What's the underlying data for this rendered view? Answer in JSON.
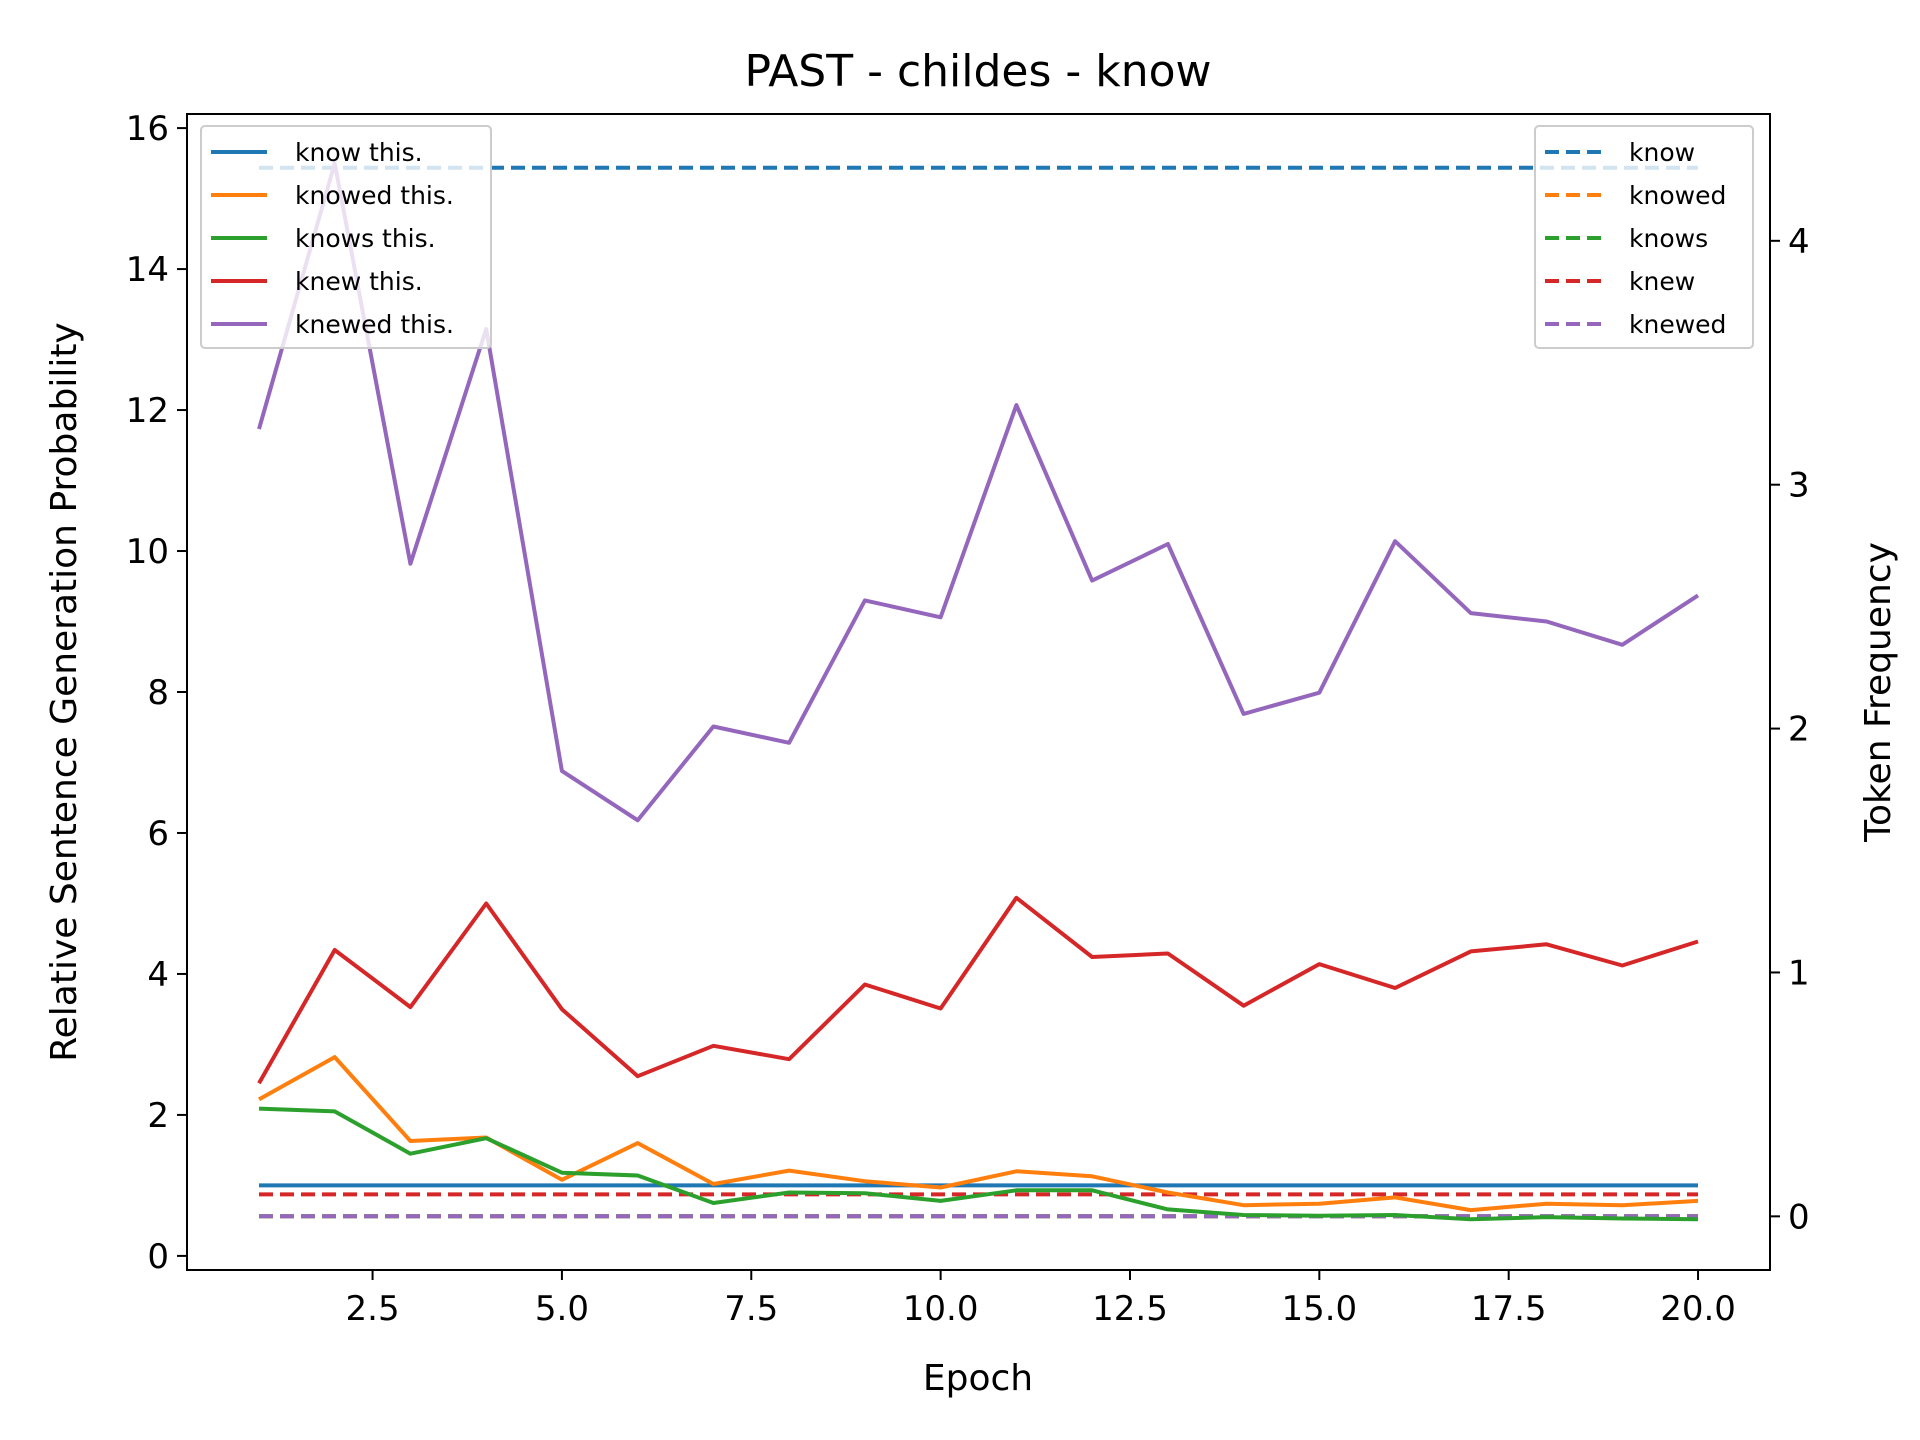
{
  "chart_data": {
    "type": "line",
    "title": "PAST - childes - know",
    "xlabel": "Epoch",
    "ylabel": "Relative Sentence Generation Probability",
    "y2label": "Token Frequency",
    "xlim": [
      0.05,
      20.95
    ],
    "ylim": [
      -0.2,
      16.2
    ],
    "y2lim": [
      -0.22,
      4.52
    ],
    "xticks": [
      "2.5",
      "5.0",
      "7.5",
      "10.0",
      "12.5",
      "15.0",
      "17.5",
      "20.0"
    ],
    "yticks": [
      "0",
      "2",
      "4",
      "6",
      "8",
      "10",
      "12",
      "14",
      "16"
    ],
    "y2ticks": [
      "0",
      "1",
      "2",
      "3",
      "4"
    ],
    "legend_left_position": "upper left",
    "legend_right_position": "upper right",
    "x": [
      1,
      2,
      3,
      4,
      5,
      6,
      7,
      8,
      9,
      10,
      11,
      12,
      13,
      14,
      15,
      16,
      17,
      18,
      19,
      20
    ],
    "series": [
      {
        "name": "know this.",
        "axis": "left",
        "color": "#1f77b4",
        "values": [
          1,
          1,
          1,
          1,
          1,
          1,
          1,
          1,
          1,
          1,
          1,
          1,
          1,
          1,
          1,
          1,
          1,
          1,
          1,
          1
        ]
      },
      {
        "name": "knowed this.",
        "axis": "left",
        "color": "#ff7f0e",
        "values": [
          2.22,
          2.82,
          1.63,
          1.68,
          1.08,
          1.6,
          1.02,
          1.21,
          1.06,
          0.97,
          1.2,
          1.13,
          0.9,
          0.72,
          0.74,
          0.83,
          0.65,
          0.74,
          0.72,
          0.78
        ]
      },
      {
        "name": "knows this.",
        "axis": "left",
        "color": "#2ca02c",
        "values": [
          2.09,
          2.05,
          1.45,
          1.67,
          1.18,
          1.14,
          0.75,
          0.9,
          0.89,
          0.78,
          0.93,
          0.93,
          0.66,
          0.58,
          0.57,
          0.58,
          0.52,
          0.55,
          0.53,
          0.52
        ]
      },
      {
        "name": "knew this.",
        "axis": "left",
        "color": "#d62728",
        "values": [
          2.45,
          4.34,
          3.53,
          5.0,
          3.5,
          2.55,
          2.98,
          2.79,
          3.85,
          3.51,
          5.08,
          4.24,
          4.29,
          3.55,
          4.14,
          3.8,
          4.32,
          4.42,
          4.12,
          4.46
        ]
      },
      {
        "name": "knewed this.",
        "axis": "left",
        "color": "#9467bd",
        "values": [
          11.73,
          15.5,
          9.82,
          13.15,
          6.88,
          6.18,
          7.51,
          7.28,
          9.3,
          9.06,
          12.07,
          9.58,
          10.1,
          7.69,
          7.99,
          10.14,
          9.12,
          9.0,
          8.67,
          9.37
        ]
      },
      {
        "name": "know",
        "axis": "right",
        "dashed": true,
        "color": "#1f77b4",
        "values": [
          4.3,
          4.3,
          4.3,
          4.3,
          4.3,
          4.3,
          4.3,
          4.3,
          4.3,
          4.3,
          4.3,
          4.3,
          4.3,
          4.3,
          4.3,
          4.3,
          4.3,
          4.3,
          4.3,
          4.3
        ]
      },
      {
        "name": "knowed",
        "axis": "right",
        "dashed": true,
        "color": "#ff7f0e",
        "values": [
          0,
          0,
          0,
          0,
          0,
          0,
          0,
          0,
          0,
          0,
          0,
          0,
          0,
          0,
          0,
          0,
          0,
          0,
          0,
          0
        ]
      },
      {
        "name": "knows",
        "axis": "right",
        "dashed": true,
        "color": "#2ca02c",
        "values": [
          0,
          0,
          0,
          0,
          0,
          0,
          0,
          0,
          0,
          0,
          0,
          0,
          0,
          0,
          0,
          0,
          0,
          0,
          0,
          0
        ]
      },
      {
        "name": "knew",
        "axis": "right",
        "dashed": true,
        "color": "#d62728",
        "values": [
          0.09,
          0.09,
          0.09,
          0.09,
          0.09,
          0.09,
          0.09,
          0.09,
          0.09,
          0.09,
          0.09,
          0.09,
          0.09,
          0.09,
          0.09,
          0.09,
          0.09,
          0.09,
          0.09,
          0.09
        ]
      },
      {
        "name": "knewed",
        "axis": "right",
        "dashed": true,
        "color": "#9467bd",
        "values": [
          0,
          0,
          0,
          0,
          0,
          0,
          0,
          0,
          0,
          0,
          0,
          0,
          0,
          0,
          0,
          0,
          0,
          0,
          0,
          0
        ]
      }
    ]
  }
}
